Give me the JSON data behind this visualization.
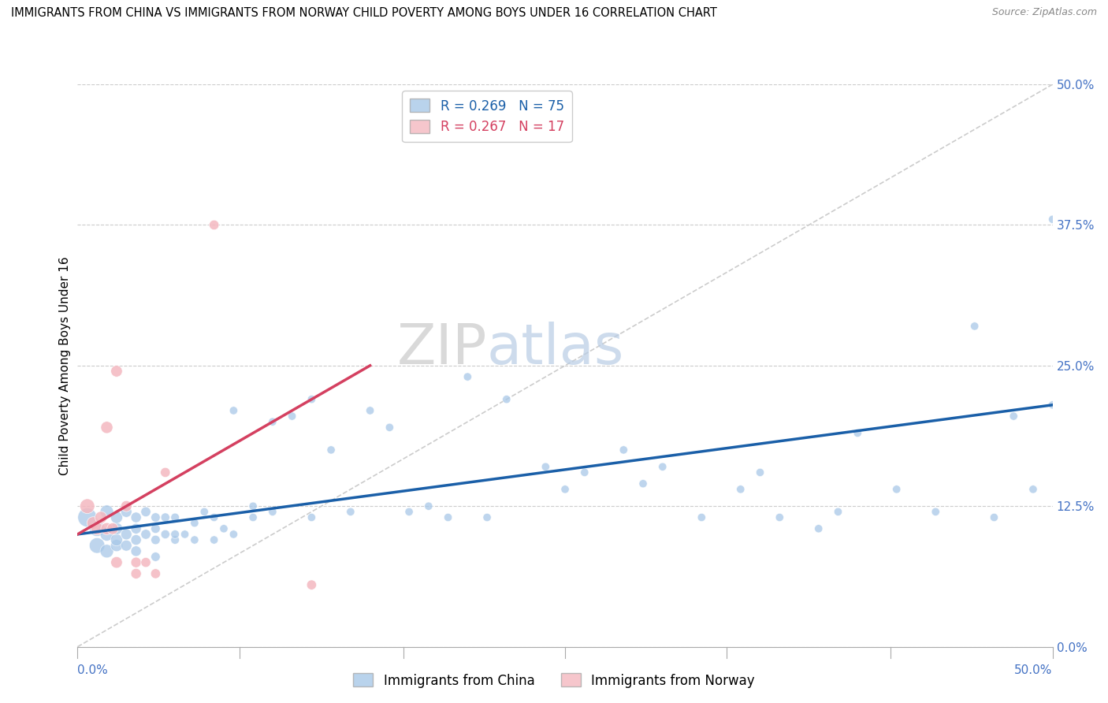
{
  "title": "IMMIGRANTS FROM CHINA VS IMMIGRANTS FROM NORWAY CHILD POVERTY AMONG BOYS UNDER 16 CORRELATION CHART",
  "source": "Source: ZipAtlas.com",
  "ylabel": "Child Poverty Among Boys Under 16",
  "ytick_values": [
    0.0,
    0.125,
    0.25,
    0.375,
    0.5
  ],
  "ytick_labels": [
    "0.0%",
    "12.5%",
    "25.0%",
    "37.5%",
    "50.0%"
  ],
  "xlim": [
    0.0,
    0.5
  ],
  "ylim": [
    0.0,
    0.5
  ],
  "china_R": 0.269,
  "china_N": 75,
  "norway_R": 0.267,
  "norway_N": 17,
  "china_color": "#a8c8e8",
  "norway_color": "#f4b8c0",
  "china_line_color": "#1a5fa8",
  "norway_line_color": "#d44060",
  "diag_line_color": "#d0d0d0",
  "watermark_zip": "ZIP",
  "watermark_atlas": "atlas",
  "legend_box_color": "#f0f4ff",
  "china_scatter_x": [
    0.005,
    0.01,
    0.01,
    0.015,
    0.015,
    0.015,
    0.02,
    0.02,
    0.02,
    0.02,
    0.025,
    0.025,
    0.025,
    0.03,
    0.03,
    0.03,
    0.03,
    0.035,
    0.035,
    0.04,
    0.04,
    0.04,
    0.04,
    0.045,
    0.045,
    0.05,
    0.05,
    0.05,
    0.055,
    0.06,
    0.06,
    0.065,
    0.07,
    0.07,
    0.075,
    0.08,
    0.08,
    0.09,
    0.09,
    0.1,
    0.1,
    0.11,
    0.12,
    0.12,
    0.13,
    0.14,
    0.15,
    0.16,
    0.17,
    0.18,
    0.19,
    0.2,
    0.21,
    0.22,
    0.24,
    0.25,
    0.26,
    0.28,
    0.29,
    0.3,
    0.32,
    0.34,
    0.35,
    0.36,
    0.38,
    0.39,
    0.4,
    0.42,
    0.44,
    0.46,
    0.47,
    0.48,
    0.49,
    0.5,
    0.5
  ],
  "china_scatter_y": [
    0.115,
    0.09,
    0.105,
    0.1,
    0.12,
    0.085,
    0.09,
    0.095,
    0.105,
    0.115,
    0.09,
    0.1,
    0.12,
    0.085,
    0.095,
    0.105,
    0.115,
    0.1,
    0.12,
    0.08,
    0.095,
    0.105,
    0.115,
    0.1,
    0.115,
    0.095,
    0.1,
    0.115,
    0.1,
    0.095,
    0.11,
    0.12,
    0.095,
    0.115,
    0.105,
    0.1,
    0.21,
    0.125,
    0.115,
    0.12,
    0.2,
    0.205,
    0.115,
    0.22,
    0.175,
    0.12,
    0.21,
    0.195,
    0.12,
    0.125,
    0.115,
    0.24,
    0.115,
    0.22,
    0.16,
    0.14,
    0.155,
    0.175,
    0.145,
    0.16,
    0.115,
    0.14,
    0.155,
    0.115,
    0.105,
    0.12,
    0.19,
    0.14,
    0.12,
    0.285,
    0.115,
    0.205,
    0.14,
    0.215,
    0.38
  ],
  "china_scatter_sizes": [
    300,
    200,
    200,
    150,
    150,
    150,
    120,
    120,
    120,
    120,
    100,
    100,
    100,
    90,
    90,
    90,
    90,
    80,
    80,
    70,
    70,
    70,
    70,
    65,
    65,
    60,
    60,
    60,
    55,
    55,
    55,
    55,
    55,
    55,
    55,
    55,
    55,
    55,
    55,
    55,
    55,
    55,
    55,
    55,
    55,
    55,
    55,
    55,
    55,
    55,
    55,
    55,
    55,
    55,
    55,
    55,
    55,
    55,
    55,
    55,
    55,
    55,
    55,
    55,
    55,
    55,
    55,
    55,
    55,
    55,
    55,
    55,
    55,
    55,
    55
  ],
  "norway_scatter_x": [
    0.005,
    0.008,
    0.01,
    0.012,
    0.015,
    0.015,
    0.018,
    0.02,
    0.02,
    0.025,
    0.03,
    0.03,
    0.035,
    0.04,
    0.045,
    0.07,
    0.12
  ],
  "norway_scatter_y": [
    0.125,
    0.11,
    0.105,
    0.115,
    0.105,
    0.195,
    0.105,
    0.245,
    0.075,
    0.125,
    0.075,
    0.065,
    0.075,
    0.065,
    0.155,
    0.375,
    0.055
  ],
  "norway_scatter_sizes": [
    180,
    130,
    130,
    120,
    120,
    120,
    110,
    110,
    110,
    100,
    90,
    90,
    80,
    80,
    80,
    80,
    80
  ],
  "china_line_x": [
    0.0,
    0.5
  ],
  "china_line_y": [
    0.1,
    0.215
  ],
  "norway_line_x": [
    0.0,
    0.15
  ],
  "norway_line_y": [
    0.1,
    0.25
  ]
}
